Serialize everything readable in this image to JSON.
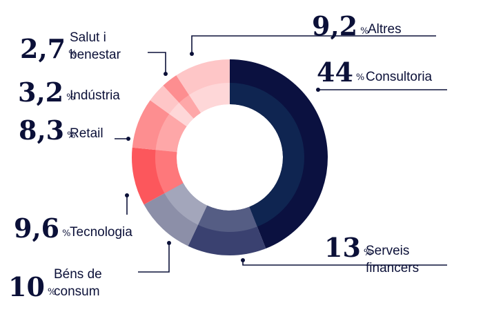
{
  "chart_data": {
    "type": "pie",
    "title": "",
    "categories": [
      "Consultoria",
      "Serveis financers",
      "Béns de consum",
      "Tecnologia",
      "Retail",
      "Indústria",
      "Salut i benestar",
      "Altres"
    ],
    "series": [
      {
        "values": [
          44,
          13,
          10,
          9.6,
          8.3,
          3.2,
          2.7,
          9.2
        ]
      }
    ],
    "value_labels": [
      "44",
      "13",
      "10",
      "9,6",
      "8,3",
      "3,2",
      "2,7",
      "9,2"
    ],
    "unit": "%",
    "label_lines": [
      [
        "Consultoria"
      ],
      [
        "Serveis",
        "financers"
      ],
      [
        "Béns de",
        "consum"
      ],
      [
        "Tecnologia"
      ],
      [
        "Retail"
      ],
      [
        "Indústria"
      ],
      [
        "Salut i",
        "benestar"
      ],
      [
        "Altres"
      ]
    ],
    "colors": [
      "#0b1140",
      "#3a4170",
      "#8c8fa8",
      "#fc575c",
      "#fd8e90",
      "#fec6c7",
      "#fd8e90",
      "#fec6c7"
    ],
    "inner_colors": [
      "#0f2551",
      "#555d84",
      "#a3a6bb",
      "#fe787b",
      "#fea7a8",
      "#fed7d8",
      "#fea7a8",
      "#fed7d8"
    ],
    "chart_style": "donut",
    "start_angle": "12 o'clock, clockwise"
  }
}
